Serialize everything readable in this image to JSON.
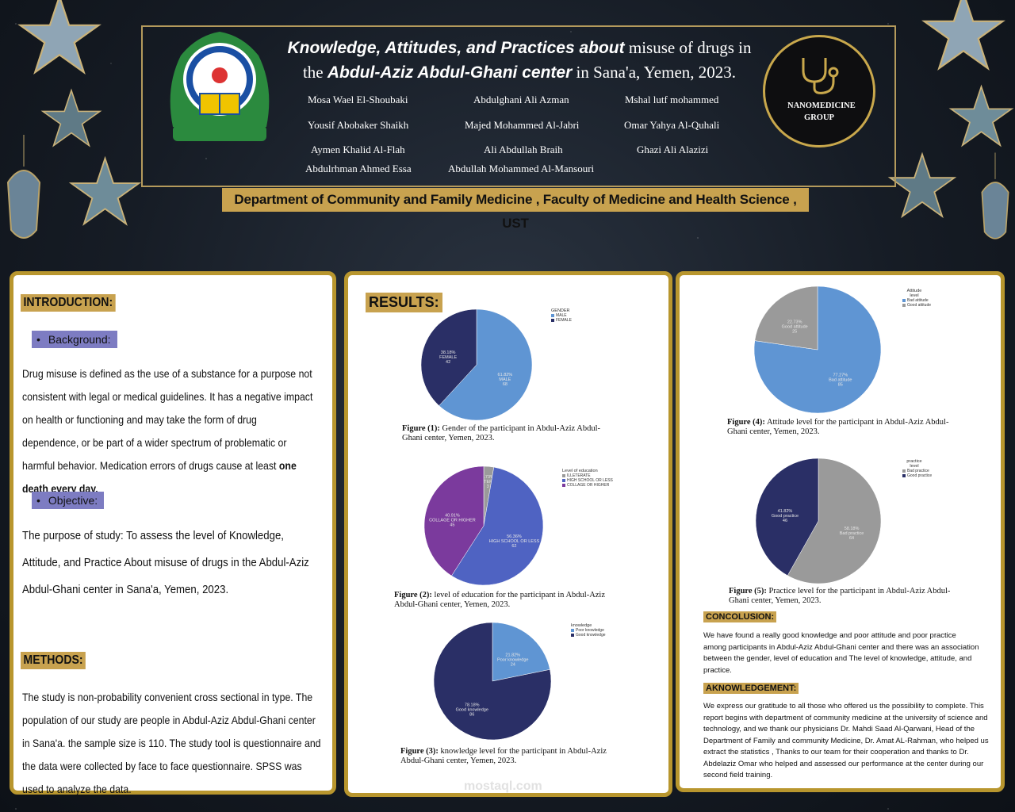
{
  "header": {
    "title_line1_italic": "Knowledge, Attitudes, and Practices about",
    "title_line1_rest": " misuse of drugs in",
    "title_line2_a": "the ",
    "title_line2_italic": "Abdul-Aziz Abdul-Ghani center",
    "title_line2_rest": " in Sana'a, Yemen, 2023.",
    "authors": [
      "Mosa Wael El-Shoubaki",
      "Abdulghani Ali  Azman",
      "Mshal lutf mohammed",
      "Yousif Abobaker Shaikh",
      "Majed Mohammed Al-Jabri",
      "Omar Yahya Al-Quhali",
      "Aymen Khalid Al-Flah",
      "Ali Abdullah Braih",
      "Ghazi Ali Alazizi",
      "Abdulrhman Ahmed Essa",
      "Abdullah Mohammed Al-Mansouri"
    ],
    "logo_right_text": "NANOMEDICINE GROUP",
    "department": "Department of Community and Family Medicine , Faculty of Medicine and Health Science , UST"
  },
  "intro": {
    "heading": "INTRODUCTION:",
    "background_label": "Background:",
    "background_text": "Drug misuse is defined as the use of a substance for a purpose not consistent with legal or medical guidelines. It has a negative impact on health or functioning and may take the form of drug dependence, or be part of a wider spectrum of problematic or harmful behavior. Medication errors of drugs cause at least",
    "background_bold": "one death every day.",
    "objective_label": "Objective:",
    "objective_text": "The purpose of study: To assess the level of Knowledge, Attitude, and Practice About misuse of drugs in the Abdul-Aziz Abdul-Ghani center in Sana'a, Yemen, 2023.",
    "methods_heading": "METHODS:",
    "methods_text": "The study is non-probability convenient cross sectional in type. The population of our study are people in Abdul-Aziz Abdul-Ghani center in Sana'a. the sample size is 110. The study tool is questionnaire and the data were collected by face to face questionnaire. SPSS was used to analyze the data."
  },
  "results": {
    "heading": "RESULTS:",
    "fig1_label": "Figure (1):",
    "fig1_caption": " Gender of the participant in Abdul-Aziz Abdul-Ghani center, Yemen, 2023.",
    "fig2_label": "Figure (2):",
    "fig2_caption": " level of education for the participant in Abdul-Aziz Abdul-Ghani center, Yemen, 2023.",
    "fig3_label": "Figure (3):",
    "fig3_caption": " knowledge level for the participant in Abdul-Aziz Abdul-Ghani center, Yemen, 2023.",
    "fig4_label": "Figure (4):",
    "fig4_caption": " Attitude level for the participant in Abdul-Aziz Abdul-Ghani center, Yemen, 2023.",
    "fig5_label": "Figure (5):",
    "fig5_caption": " Practice level for the participant in Abdul-Aziz Abdul-Ghani center, Yemen, 2023."
  },
  "conclusion": {
    "heading": "CONCOLUSION:",
    "text": "We have found a really good knowledge and poor attitude and poor practice among participants in Abdul-Aziz Abdul-Ghani center and there was an association between the gender, level of education and The level of knowledge, attitude, and practice."
  },
  "acknowledgement": {
    "heading": "AKNOWLEDGEMENT:",
    "text": "We express our gratitude to all those who offered us the possibility to complete. This report begins with department of community medicine at the university of science and technology, and we thank our physicians Dr. Mahdi Saad Al-Qarwani, Head of the Department of Family and community Medicine, Dr. Amat AL-Rahman, who helped us extract the statistics , Thanks to our team for their cooperation and thanks to Dr. Abdelaziz Omar who helped and assessed our performance at the center during our second field training."
  },
  "watermark": "mostaql.com",
  "chart_data": [
    {
      "type": "pie",
      "legend_title": "GENDER",
      "categories": [
        "MALE",
        "FEMALE"
      ],
      "values": [
        61.82,
        38.18
      ],
      "counts": [
        68,
        42
      ],
      "colors": [
        "#5f95d3",
        "#2a2f66"
      ]
    },
    {
      "type": "pie",
      "legend_title": "Level of education",
      "categories": [
        "ILLETERATE",
        "HIGH SCHOOL OR LESS",
        "COLLAGE OR HIGHER"
      ],
      "values": [
        2.73,
        56.36,
        40.91
      ],
      "counts": [
        3,
        62,
        45
      ],
      "colors": [
        "#9a9a9a",
        "#4f63c2",
        "#7b3a9d"
      ]
    },
    {
      "type": "pie",
      "legend_title": "knowledge",
      "categories": [
        "Poor knowledge",
        "Good knowledge"
      ],
      "values": [
        21.82,
        78.18
      ],
      "counts": [
        24,
        86
      ],
      "colors": [
        "#5f95d3",
        "#2a2f66"
      ]
    },
    {
      "type": "pie",
      "legend_title": "Attitude level",
      "categories": [
        "Bad attitude",
        "Good attitude"
      ],
      "values": [
        77.27,
        22.73
      ],
      "counts": [
        85,
        25
      ],
      "colors": [
        "#5f95d3",
        "#9a9a9a"
      ]
    },
    {
      "type": "pie",
      "legend_title": "practice level",
      "categories": [
        "Bad practice",
        "Good practice"
      ],
      "values": [
        58.18,
        41.82
      ],
      "counts": [
        64,
        46
      ],
      "colors": [
        "#9a9a9a",
        "#2a2f66"
      ]
    }
  ]
}
